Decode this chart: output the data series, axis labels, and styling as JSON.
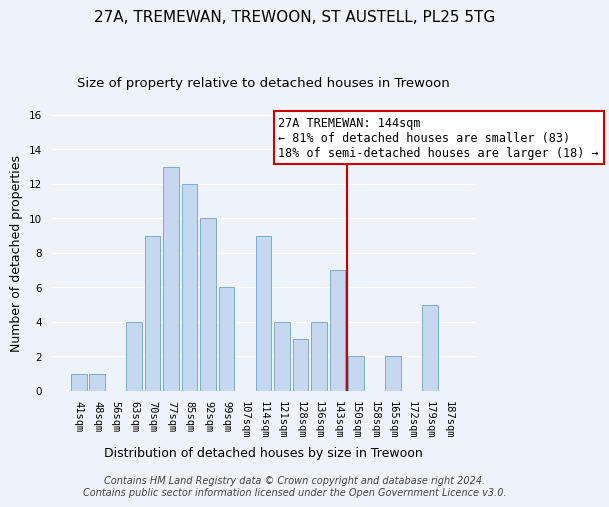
{
  "title": "27A, TREMEWAN, TREWOON, ST AUSTELL, PL25 5TG",
  "subtitle": "Size of property relative to detached houses in Trewoon",
  "xlabel": "Distribution of detached houses by size in Trewoon",
  "ylabel": "Number of detached properties",
  "bar_labels": [
    "41sqm",
    "48sqm",
    "56sqm",
    "63sqm",
    "70sqm",
    "77sqm",
    "85sqm",
    "92sqm",
    "99sqm",
    "107sqm",
    "114sqm",
    "121sqm",
    "128sqm",
    "136sqm",
    "143sqm",
    "150sqm",
    "158sqm",
    "165sqm",
    "172sqm",
    "179sqm",
    "187sqm"
  ],
  "bar_values": [
    1,
    1,
    0,
    4,
    9,
    13,
    12,
    10,
    6,
    0,
    9,
    4,
    3,
    4,
    7,
    2,
    0,
    2,
    0,
    5,
    0
  ],
  "bar_color": "#c5d8f0",
  "bar_edge_color": "#7aadd4",
  "ylim": [
    0,
    16
  ],
  "yticks": [
    0,
    2,
    4,
    6,
    8,
    10,
    12,
    14,
    16
  ],
  "annotation_line_color": "#cc0000",
  "annotation_box_text_line1": "27A TREMEWAN: 144sqm",
  "annotation_box_text_line2": "← 81% of detached houses are smaller (83)",
  "annotation_box_text_line3": "18% of semi-detached houses are larger (18) →",
  "footer_line1": "Contains HM Land Registry data © Crown copyright and database right 2024.",
  "footer_line2": "Contains public sector information licensed under the Open Government Licence v3.0.",
  "background_color": "#eef2f9",
  "grid_color": "#ffffff",
  "title_fontsize": 11,
  "subtitle_fontsize": 9.5,
  "axis_label_fontsize": 9,
  "tick_fontsize": 7.5,
  "annotation_fontsize": 8.5,
  "footer_fontsize": 7
}
